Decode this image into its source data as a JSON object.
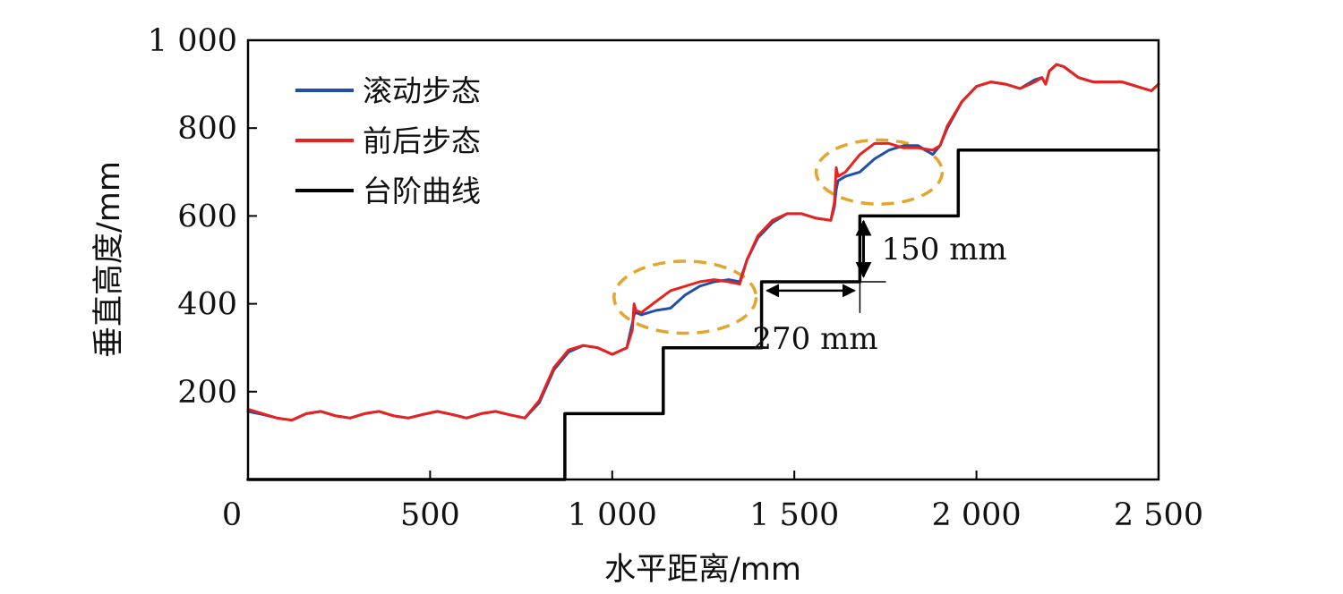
{
  "chart_data": {
    "type": "line",
    "xlabel": "水平距离/mm",
    "ylabel": "垂直高度/mm",
    "xlim": [
      0,
      2500
    ],
    "ylim": [
      0,
      1000
    ],
    "x_ticks": [
      0,
      500,
      1000,
      1500,
      2000,
      2500
    ],
    "x_tick_labels": [
      "0",
      "500",
      "1 000",
      "1 500",
      "2 000",
      "2 500"
    ],
    "y_ticks": [
      200,
      400,
      600,
      800,
      1000
    ],
    "y_tick_labels": [
      "200",
      "400",
      "600",
      "800",
      "1 000"
    ],
    "grid": false,
    "legend_position": "top-left",
    "series": [
      {
        "name": "滚动步态",
        "color": "#1f4fa8",
        "x": [
          0,
          40,
          80,
          120,
          160,
          200,
          240,
          280,
          320,
          360,
          400,
          440,
          480,
          520,
          560,
          600,
          640,
          680,
          720,
          760,
          800,
          840,
          880,
          920,
          960,
          1000,
          1040,
          1055,
          1060,
          1065,
          1080,
          1120,
          1160,
          1200,
          1240,
          1280,
          1320,
          1350,
          1370,
          1400,
          1440,
          1480,
          1520,
          1560,
          1600,
          1610,
          1615,
          1620,
          1640,
          1680,
          1720,
          1760,
          1800,
          1840,
          1880,
          1900,
          1920,
          1960,
          2000,
          2040,
          2080,
          2120,
          2160,
          2180,
          2190,
          2200,
          2220,
          2240,
          2280,
          2320,
          2360,
          2400,
          2440,
          2480,
          2500
        ],
        "y": [
          155,
          148,
          140,
          135,
          150,
          155,
          145,
          140,
          150,
          155,
          145,
          140,
          148,
          155,
          148,
          140,
          150,
          155,
          147,
          140,
          175,
          250,
          290,
          305,
          300,
          285,
          300,
          355,
          375,
          380,
          375,
          385,
          390,
          420,
          440,
          450,
          455,
          450,
          500,
          550,
          585,
          605,
          605,
          595,
          590,
          620,
          660,
          680,
          690,
          700,
          730,
          750,
          760,
          760,
          740,
          760,
          800,
          860,
          895,
          905,
          900,
          890,
          910,
          915,
          900,
          930,
          945,
          940,
          915,
          905,
          905,
          905,
          895,
          885,
          900
        ]
      },
      {
        "name": "前后步态",
        "color": "#e8221e",
        "x": [
          0,
          40,
          80,
          120,
          160,
          200,
          240,
          280,
          320,
          360,
          400,
          440,
          480,
          520,
          560,
          600,
          640,
          680,
          720,
          760,
          800,
          840,
          880,
          920,
          960,
          1000,
          1040,
          1055,
          1060,
          1065,
          1080,
          1120,
          1160,
          1200,
          1240,
          1280,
          1320,
          1350,
          1370,
          1400,
          1440,
          1480,
          1520,
          1560,
          1600,
          1610,
          1615,
          1620,
          1640,
          1680,
          1720,
          1760,
          1800,
          1840,
          1880,
          1900,
          1920,
          1960,
          2000,
          2040,
          2080,
          2120,
          2160,
          2180,
          2190,
          2200,
          2220,
          2240,
          2280,
          2320,
          2360,
          2400,
          2440,
          2480,
          2500
        ],
        "y": [
          160,
          150,
          140,
          135,
          150,
          155,
          145,
          140,
          150,
          155,
          145,
          140,
          148,
          155,
          148,
          140,
          150,
          155,
          147,
          140,
          180,
          255,
          295,
          305,
          300,
          285,
          300,
          340,
          400,
          385,
          380,
          405,
          430,
          440,
          450,
          455,
          450,
          445,
          500,
          555,
          590,
          605,
          605,
          595,
          590,
          630,
          710,
          690,
          700,
          740,
          765,
          765,
          755,
          755,
          750,
          760,
          805,
          860,
          895,
          905,
          900,
          890,
          905,
          915,
          900,
          930,
          945,
          940,
          915,
          905,
          905,
          905,
          895,
          885,
          900
        ]
      },
      {
        "name": "台阶曲线",
        "color": "#000000",
        "x": [
          0,
          870,
          870,
          1140,
          1140,
          1410,
          1410,
          1680,
          1680,
          1950,
          1950,
          2500
        ],
        "y": [
          0,
          0,
          150,
          150,
          300,
          300,
          450,
          450,
          600,
          600,
          750,
          750
        ]
      }
    ],
    "annotations": [
      {
        "text": "150 mm",
        "kind": "vertical-dimension",
        "x": 1690,
        "y1": 450,
        "y2": 600
      },
      {
        "text": "270 mm",
        "kind": "horizontal-dimension",
        "y": 430,
        "x1": 1410,
        "x2": 1680
      }
    ],
    "highlights": [
      {
        "kind": "dashed-ellipse",
        "color": "#e3a52b",
        "cx": 1200,
        "cy": 415,
        "rx": 195,
        "ry": 82
      },
      {
        "kind": "dashed-ellipse",
        "color": "#e3a52b",
        "cx": 1733,
        "cy": 700,
        "rx": 173,
        "ry": 73
      }
    ]
  }
}
